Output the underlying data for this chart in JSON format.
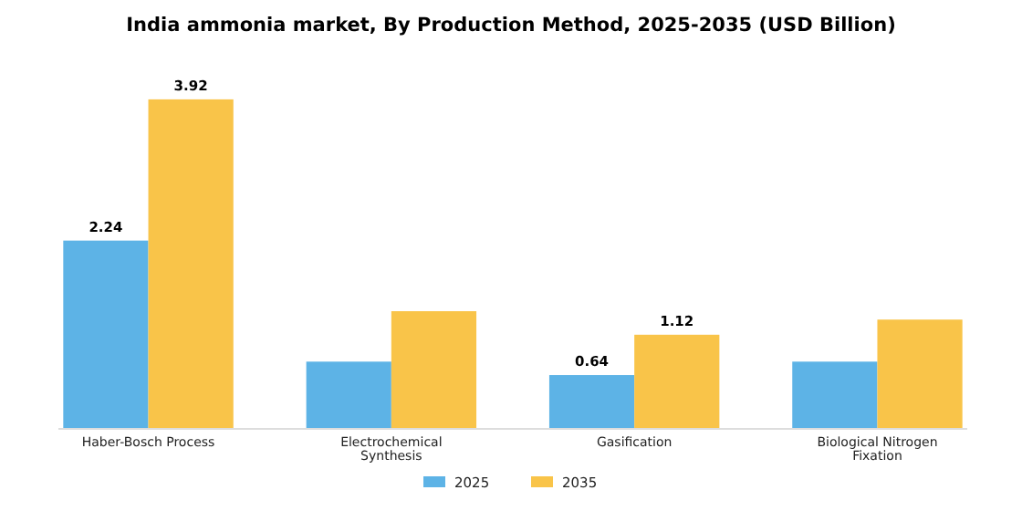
{
  "chart_data": {
    "type": "bar",
    "title": "India ammonia market, By Production Method, 2025-2035 (USD Billion)",
    "categories": [
      "Haber-Bosch Process",
      "Electrochemical Synthesis",
      "Gasification",
      "Biological Nitrogen Fixation"
    ],
    "series": [
      {
        "name": "2025",
        "color": "#5db3e6",
        "values": [
          2.24,
          0.8,
          0.64,
          0.8
        ],
        "value_labels": [
          "2.24",
          null,
          "0.64",
          null
        ]
      },
      {
        "name": "2035",
        "color": "#f9c449",
        "values": [
          3.92,
          1.4,
          1.12,
          1.3
        ],
        "value_labels": [
          "3.92",
          null,
          "1.12",
          null
        ]
      }
    ],
    "legend": "bottom",
    "tick_labels": "x"
  }
}
